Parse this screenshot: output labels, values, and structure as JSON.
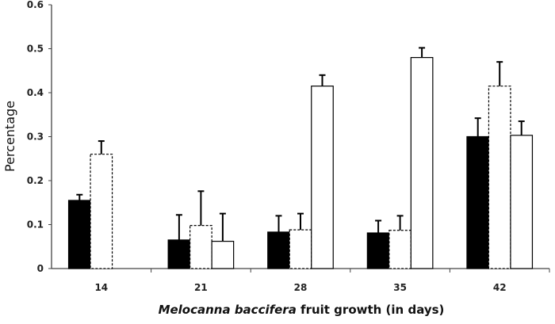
{
  "chart_data": {
    "type": "bar",
    "title": "",
    "xlabel_italic": "Melocanna baccifera",
    "xlabel_rest": " fruit growth (in days)",
    "ylabel": "Percentage",
    "ylim": [
      0,
      0.6
    ],
    "yticks": [
      "0",
      "0.1",
      "0.2",
      "0.3",
      "0.4",
      "0.5",
      "0.6"
    ],
    "categories": [
      "14",
      "21",
      "28",
      "35",
      "42"
    ],
    "grid": false,
    "legend": "none",
    "series": [
      {
        "style": "solid-black",
        "color": "#000000",
        "values": [
          0.155,
          0.065,
          0.083,
          0.081,
          0.3
        ],
        "error_upper": [
          0.168,
          0.122,
          0.12,
          0.109,
          0.342
        ]
      },
      {
        "style": "dashed-white",
        "color": "#ffffff",
        "values": [
          0.26,
          0.098,
          0.088,
          0.087,
          0.415
        ],
        "error_upper": [
          0.29,
          0.176,
          0.125,
          0.12,
          0.47
        ]
      },
      {
        "style": "solid-white",
        "color": "#ffffff",
        "values": [
          null,
          0.062,
          0.415,
          0.48,
          0.303
        ],
        "error_upper": [
          null,
          0.125,
          0.44,
          0.502,
          0.335
        ]
      }
    ]
  }
}
